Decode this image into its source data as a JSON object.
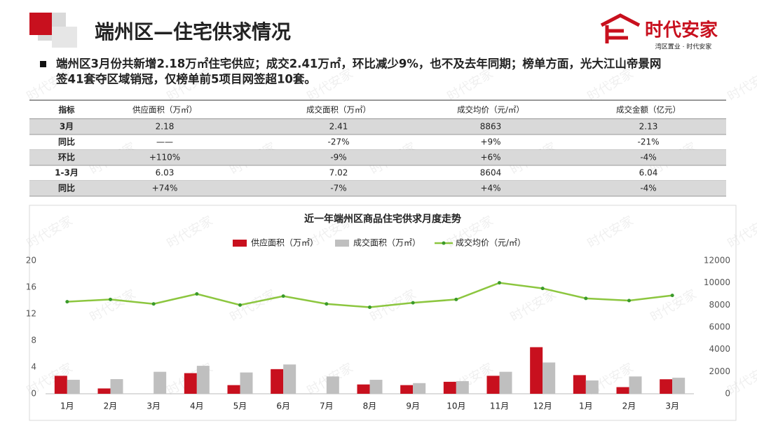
{
  "header": {
    "title": "端州区—住宅供求情况"
  },
  "logo": {
    "name": "时代安家",
    "tagline": "湾区置业 · 时代安家"
  },
  "watermark": "时代安家",
  "bullet": {
    "lines": [
      "端州区3月份共新增2.18万㎡住宅供应；成交2.41万㎡，环比减少9%，也不及去年同期；榜单方面，光大江山帝景网",
      "签41套夺区域销冠，仅榜单前5项目网签超10套。"
    ]
  },
  "table": {
    "header": [
      "指标",
      "供应面积（万㎡）",
      "成交面积（万㎡）",
      "成交均价（元/㎡）",
      "成交金额（亿元）"
    ],
    "rows": [
      [
        "3月",
        "2.18",
        "2.41",
        "8863",
        "2.13"
      ],
      [
        "同比",
        "——",
        "-27%",
        "+9%",
        "-21%"
      ],
      [
        "环比",
        "+110%",
        "-9%",
        "+6%",
        "-4%"
      ],
      [
        "1-3月",
        "6.03",
        "7.02",
        "8604",
        "6.04"
      ],
      [
        "同比",
        "+74%",
        "-7%",
        "+4%",
        "-4%"
      ]
    ]
  },
  "chart_data": {
    "type": "bar-line",
    "title": "近一年端州区商品住宅供求月度走势",
    "categories": [
      "1月",
      "2月",
      "3月",
      "4月",
      "5月",
      "6月",
      "7月",
      "8月",
      "9月",
      "10月",
      "11月",
      "12月",
      "1月",
      "2月",
      "3月"
    ],
    "series": [
      {
        "name": "供应面积（万㎡）",
        "type": "bar",
        "color": "#c8101e",
        "values": [
          2.7,
          0.8,
          0,
          3.1,
          1.3,
          3.7,
          0,
          1.4,
          1.3,
          1.8,
          2.7,
          7.0,
          2.8,
          1.0,
          2.18
        ]
      },
      {
        "name": "成交面积（万㎡）",
        "type": "bar",
        "color": "#bfbfbf",
        "values": [
          2.1,
          2.2,
          3.3,
          4.2,
          3.2,
          4.4,
          2.6,
          2.1,
          1.6,
          1.9,
          3.3,
          4.7,
          2.0,
          2.6,
          2.41
        ]
      },
      {
        "name": "成交均价（元/㎡）",
        "type": "line",
        "axis": "y2",
        "color": "#8cc63f",
        "values": [
          8300,
          8500,
          8100,
          9000,
          8000,
          8800,
          8100,
          7800,
          8200,
          8500,
          10000,
          9500,
          8600,
          8400,
          8863
        ]
      }
    ],
    "ylim": [
      0,
      20
    ],
    "yticks": [
      0,
      4,
      8,
      12,
      16,
      20
    ],
    "y2lim": [
      0,
      12000
    ],
    "y2ticks": [
      0,
      2000,
      4000,
      6000,
      8000,
      10000,
      12000
    ],
    "grid": false,
    "legend": "top"
  }
}
